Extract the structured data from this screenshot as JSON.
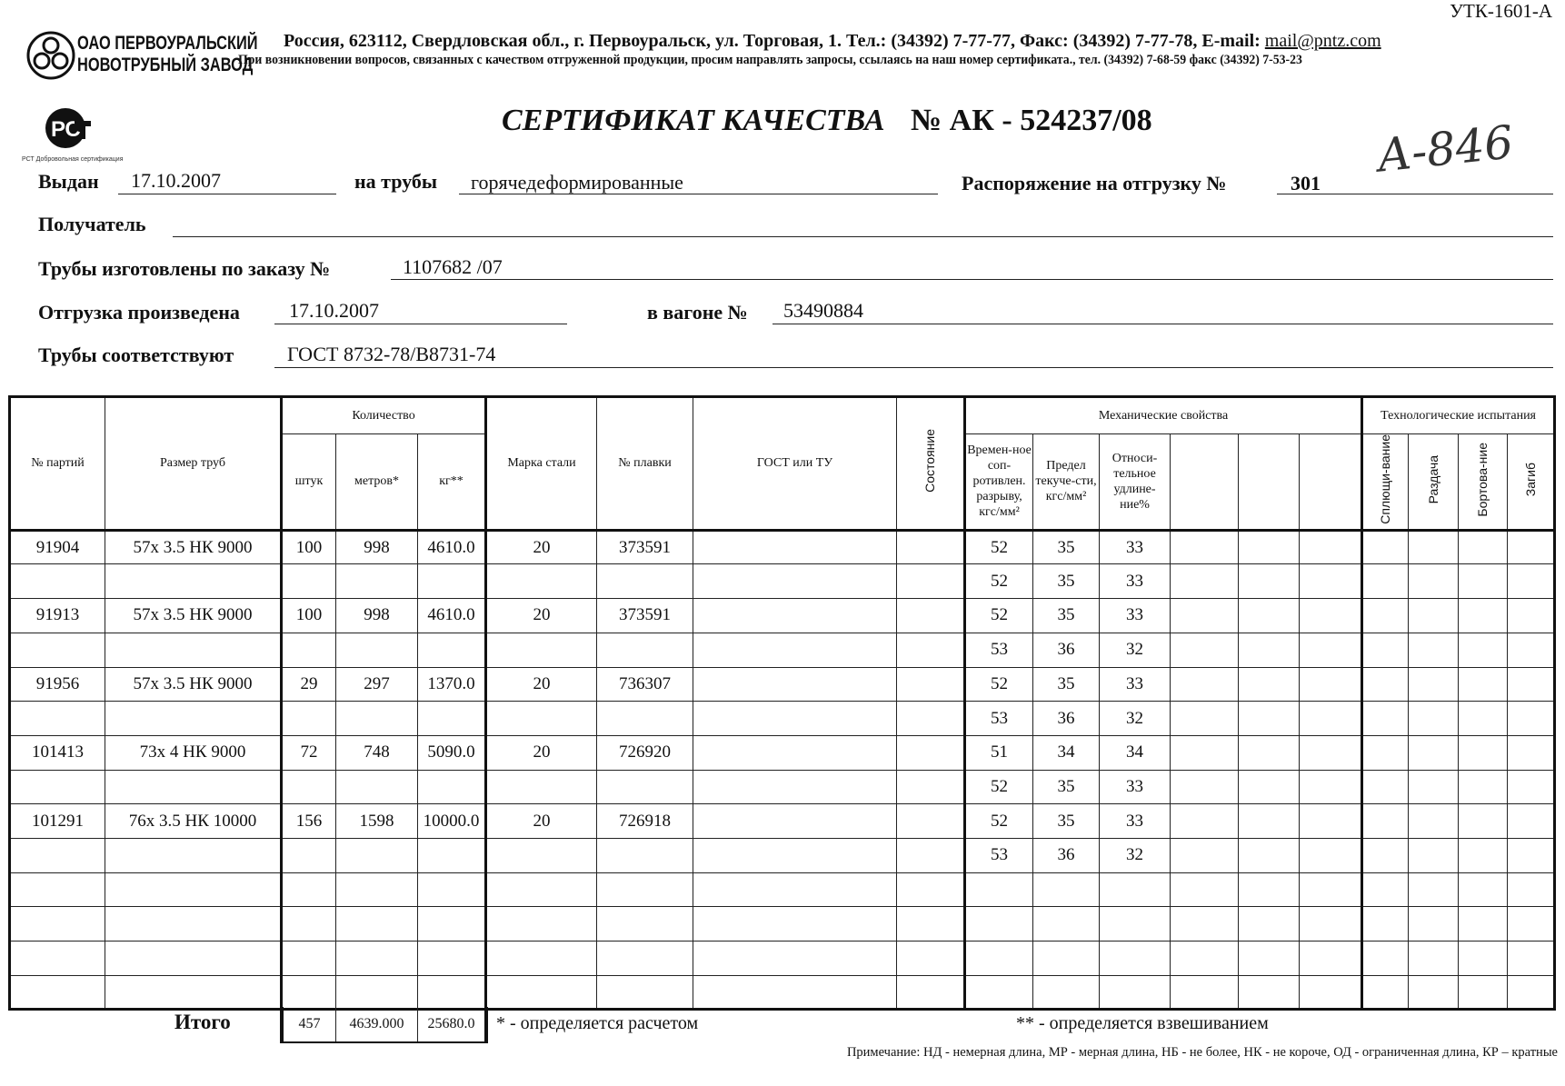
{
  "form_code": "УТК-1601-А",
  "company": {
    "line1": "ОАО ПЕРВОУРАЛЬСКИЙ",
    "line2": "НОВОТРУБНЫЙ ЗАВОД",
    "logo_text": "ОАО ПНТЗ",
    "cert_mark": "РСТ Добровольная сертификация"
  },
  "address": "Россия, 623112, Свердловская обл., г. Первоуральск, ул. Торговая, 1. Тел.: (34392) 7-77-77, Факс: (34392) 7-77-78,  E-mail: ",
  "email": "mail@pntz.com",
  "contact_note": "При возникновении вопросов, связанных с качеством отгруженной продукции, просим направлять запросы, ссылаясь на наш номер сертификата., тел. (34392) 7-68-59 факс (34392) 7-53-23",
  "title": "СЕРТИФИКАТ КАЧЕСТВА",
  "number_label": "№  АК -  524237/08",
  "handwritten": "А-846",
  "fields": {
    "issued_label": "Выдан",
    "issued": "17.10.2007",
    "pipes_label": "на трубы",
    "pipes": "горячедеформированные",
    "order_label": "Распоряжение на отгрузку №",
    "order": "301",
    "recipient_label": "Получатель",
    "recipient": "",
    "made_label": "Трубы изготовлены по заказу №",
    "made": "1107682   /07",
    "shipped_label": "Отгрузка произведена",
    "shipped": "17.10.2007",
    "wagon_label": "в вагоне №",
    "wagon": "53490884",
    "conform_label": "Трубы соответствуют",
    "conform": "ГОСТ 8732-78/В8731-74"
  },
  "table": {
    "h": {
      "batch": "№ партий",
      "size": "Размер труб",
      "qty": "Количество",
      "pcs": "штук",
      "m": "метров*",
      "kg": "кг**",
      "steel": "Марка стали",
      "heat": "№ плавки",
      "gost": "ГОСТ или ТУ",
      "state": "Состояние",
      "mech": "Механические свойства",
      "tensile": "Времен-ное соп-ротивлен. разрыву, кгс/мм²",
      "yield": "Предел текуче-сти, кгс/мм²",
      "elong": "Относи-тельное удлине-ние%",
      "tech": "Технологические испытания",
      "flat": "Сплющи-вание",
      "expand": "Раздача",
      "flange": "Бортова-ние",
      "bend": "Загиб"
    },
    "rows": [
      [
        "91904",
        "57x 3.5 НК 9000",
        "100",
        "998",
        "4610.0",
        "20",
        "373591",
        "52",
        "35",
        "33"
      ],
      [
        "",
        "",
        "",
        "",
        "",
        "",
        "",
        "52",
        "35",
        "33"
      ],
      [
        "91913",
        "57x 3.5 НК 9000",
        "100",
        "998",
        "4610.0",
        "20",
        "373591",
        "52",
        "35",
        "33"
      ],
      [
        "",
        "",
        "",
        "",
        "",
        "",
        "",
        "53",
        "36",
        "32"
      ],
      [
        "91956",
        "57x 3.5 НК 9000",
        "29",
        "297",
        "1370.0",
        "20",
        "736307",
        "52",
        "35",
        "33"
      ],
      [
        "",
        "",
        "",
        "",
        "",
        "",
        "",
        "53",
        "36",
        "32"
      ],
      [
        "101413",
        "73x 4 НК 9000",
        "72",
        "748",
        "5090.0",
        "20",
        "726920",
        "51",
        "34",
        "34"
      ],
      [
        "",
        "",
        "",
        "",
        "",
        "",
        "",
        "52",
        "35",
        "33"
      ],
      [
        "101291",
        "76x 3.5 НК 10000",
        "156",
        "1598",
        "10000.0",
        "20",
        "726918",
        "52",
        "35",
        "33"
      ],
      [
        "",
        "",
        "",
        "",
        "",
        "",
        "",
        "53",
        "36",
        "32"
      ],
      [
        "",
        "",
        "",
        "",
        "",
        "",
        "",
        "",
        "",
        ""
      ],
      [
        "",
        "",
        "",
        "",
        "",
        "",
        "",
        "",
        "",
        ""
      ],
      [
        "",
        "",
        "",
        "",
        "",
        "",
        "",
        "",
        "",
        ""
      ],
      [
        "",
        "",
        "",
        "",
        "",
        "",
        "",
        "",
        "",
        ""
      ]
    ]
  },
  "total": {
    "label": "Итого",
    "pcs": "457",
    "m": "4639.000",
    "kg": "25680.0"
  },
  "footnote1": "* - определяется расчетом",
  "footnote2": "** - определяется взвешиванием",
  "note": "Примечание: НД - немерная длина, МР - мерная длина, НБ - не более, НК - не короче, ОД - ограниченная длина, КР – кратные"
}
